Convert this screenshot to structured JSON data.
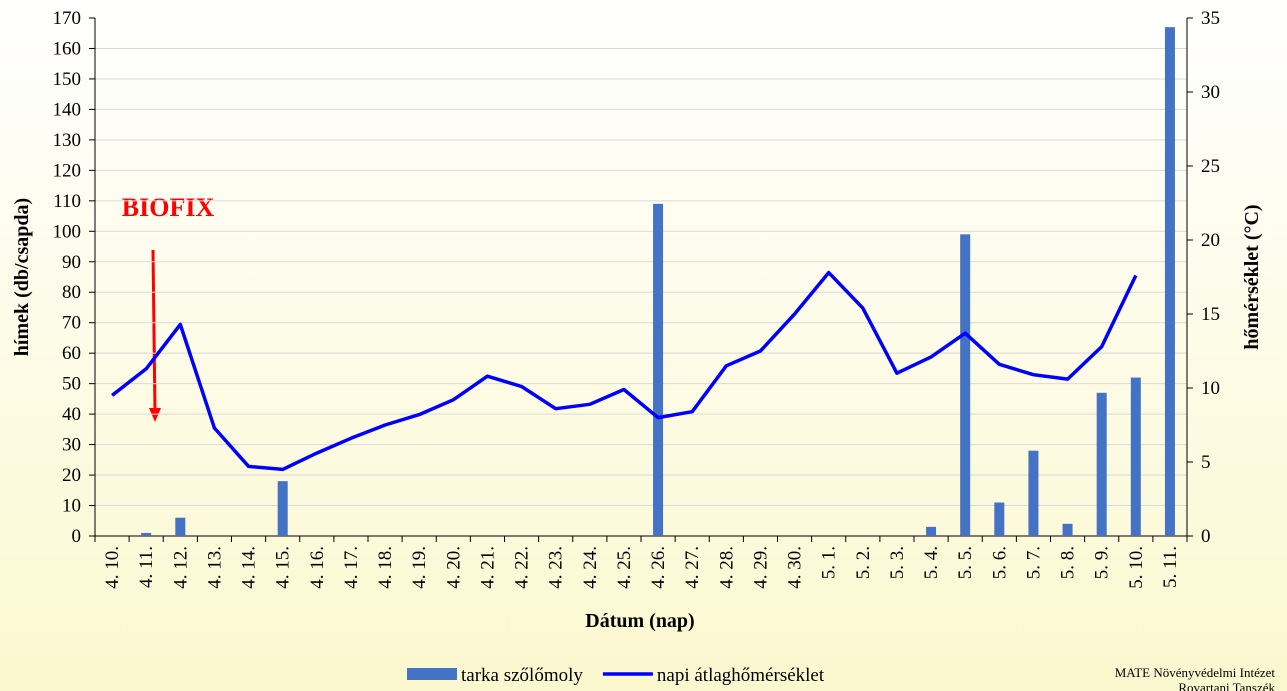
{
  "chart_data": {
    "type": "bar-line",
    "x_label": "Dátum (nap)",
    "y_label": "hímek (db/csapda)",
    "y2_label": "hőmérséklet (°C)",
    "annotation": "BIOFIX",
    "source": [
      "MATE Növényvédelmi Intézet",
      "Rovartani Tanszék"
    ],
    "categories": [
      "4. 10.",
      "4. 11.",
      "4. 12.",
      "4. 13.",
      "4. 14.",
      "4. 15.",
      "4. 16.",
      "4. 17.",
      "4. 18.",
      "4. 19.",
      "4. 20.",
      "4. 21.",
      "4. 22.",
      "4. 23.",
      "4. 24.",
      "4. 25.",
      "4. 26.",
      "4. 27.",
      "4. 28.",
      "4. 29.",
      "4. 30.",
      "5. 1.",
      "5. 2.",
      "5. 3.",
      "5. 4.",
      "5. 5.",
      "5. 6.",
      "5. 7.",
      "5. 8.",
      "5. 9.",
      "5. 10.",
      "5. 11."
    ],
    "series": [
      {
        "name": "tarka szőlőmoly",
        "type": "bar",
        "color": "#4472c4",
        "values": [
          0,
          1,
          6,
          0,
          0,
          18,
          0,
          0,
          0,
          0,
          0,
          0,
          0,
          0,
          0,
          0,
          109,
          0,
          0,
          0,
          0,
          0,
          0,
          0,
          3,
          99,
          11,
          28,
          4,
          47,
          52,
          167
        ]
      },
      {
        "name": "napi átlaghőmérséklet",
        "type": "line",
        "axis": "y2",
        "color": "#0000ff",
        "values": [
          9.5,
          11.3,
          14.3,
          7.3,
          4.7,
          4.5,
          5.6,
          6.6,
          7.5,
          8.2,
          9.2,
          10.8,
          10.1,
          8.6,
          8.9,
          9.9,
          8.0,
          8.4,
          11.5,
          12.5,
          15.0,
          17.8,
          15.4,
          11.0,
          12.1,
          13.7,
          11.6,
          10.9,
          10.6,
          12.8,
          17.6,
          null
        ]
      }
    ],
    "ylim": [
      0,
      170
    ],
    "yticks": [
      0,
      10,
      20,
      30,
      40,
      50,
      60,
      70,
      80,
      90,
      100,
      110,
      120,
      130,
      140,
      150,
      160,
      170
    ],
    "y2lim": [
      0,
      35
    ],
    "y2ticks": [
      0,
      5,
      10,
      15,
      20,
      25,
      30,
      35
    ],
    "grid": true,
    "legend": "bottom"
  }
}
